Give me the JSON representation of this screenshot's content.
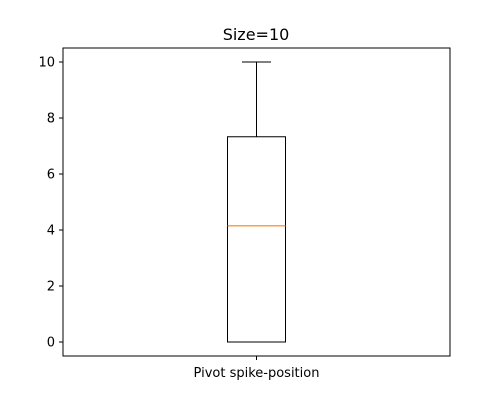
{
  "chart_data": {
    "type": "boxplot",
    "title": "Size=10",
    "xlabel": "",
    "ylabel": "",
    "categories": [
      "Pivot spike-position"
    ],
    "boxes": [
      {
        "label": "Pivot spike-position",
        "whisker_low": 0,
        "q1": 0,
        "median": 4.15,
        "q3": 7.33,
        "whisker_high": 10
      }
    ],
    "yticks": [
      0,
      2,
      4,
      6,
      8,
      10
    ],
    "ylim": [
      -0.5,
      10.5
    ],
    "grid": false,
    "colors": {
      "box": "#000000",
      "median": "#ff7f0e",
      "whisker": "#000000",
      "axis": "#000000"
    }
  }
}
